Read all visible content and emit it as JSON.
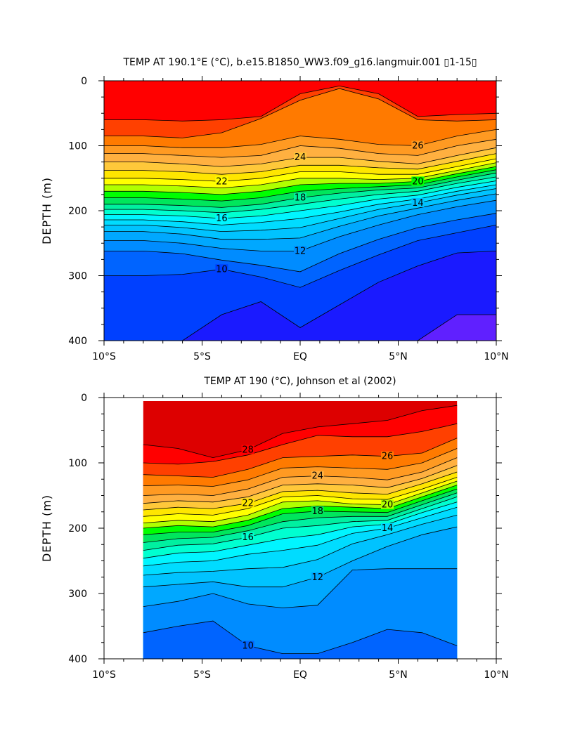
{
  "chart_data": [
    {
      "type": "contour",
      "title": "TEMP AT 190.1°E (°C), b.e15.B1850_WW3.f09_g16.langmuir.001 ▯1-15▯",
      "xlabel": "",
      "ylabel": "DEPTH (m)",
      "x_ticks": [
        "10°S",
        "5°S",
        "EQ",
        "5°N",
        "10°N"
      ],
      "x_range": [
        -10,
        10
      ],
      "y_ticks": [
        "0",
        "100",
        "200",
        "300",
        "400"
      ],
      "y_range": [
        0,
        400
      ],
      "y_inverted": true,
      "data_x_range": [
        -10,
        10
      ],
      "levels": [
        {
          "temp": 28,
          "depth": [
            60,
            60,
            62,
            60,
            55,
            20,
            8,
            20,
            55,
            52,
            50
          ]
        },
        {
          "temp": 27,
          "depth": [
            85,
            85,
            88,
            80,
            58,
            30,
            12,
            28,
            60,
            62,
            60
          ]
        },
        {
          "temp": 26,
          "depth": [
            100,
            100,
            103,
            103,
            98,
            85,
            90,
            98,
            100,
            85,
            75
          ]
        },
        {
          "temp": 25,
          "depth": [
            112,
            112,
            115,
            118,
            115,
            100,
            104,
            112,
            115,
            100,
            90
          ]
        },
        {
          "temp": 24,
          "depth": [
            125,
            125,
            128,
            132,
            128,
            118,
            118,
            124,
            128,
            115,
            103
          ]
        },
        {
          "temp": 23,
          "depth": [
            138,
            138,
            140,
            144,
            140,
            130,
            130,
            134,
            136,
            124,
            112
          ]
        },
        {
          "temp": 22,
          "depth": [
            150,
            150,
            152,
            155,
            150,
            140,
            140,
            144,
            144,
            132,
            120
          ]
        },
        {
          "temp": 21,
          "depth": [
            160,
            160,
            162,
            165,
            160,
            150,
            150,
            152,
            150,
            138,
            126
          ]
        },
        {
          "temp": 20,
          "depth": [
            170,
            170,
            172,
            175,
            170,
            160,
            158,
            158,
            155,
            143,
            132
          ]
        },
        {
          "temp": 19,
          "depth": [
            180,
            180,
            182,
            185,
            180,
            170,
            166,
            163,
            160,
            148,
            137
          ]
        },
        {
          "temp": 18,
          "depth": [
            190,
            190,
            192,
            195,
            190,
            180,
            173,
            168,
            165,
            153,
            142
          ]
        },
        {
          "temp": 17,
          "depth": [
            198,
            198,
            200,
            203,
            198,
            190,
            182,
            175,
            170,
            158,
            148
          ]
        },
        {
          "temp": 16,
          "depth": [
            206,
            206,
            208,
            212,
            208,
            200,
            192,
            182,
            176,
            164,
            154
          ]
        },
        {
          "temp": 15,
          "depth": [
            214,
            214,
            217,
            222,
            218,
            212,
            202,
            190,
            182,
            170,
            160
          ]
        },
        {
          "temp": 14,
          "depth": [
            222,
            222,
            226,
            232,
            230,
            226,
            212,
            198,
            188,
            176,
            166
          ]
        },
        {
          "temp": 13,
          "depth": [
            232,
            232,
            236,
            244,
            244,
            242,
            224,
            208,
            196,
            184,
            174
          ]
        },
        {
          "temp": 12,
          "depth": [
            246,
            246,
            250,
            258,
            262,
            262,
            240,
            222,
            206,
            194,
            184
          ]
        },
        {
          "temp": 11,
          "depth": [
            262,
            262,
            266,
            276,
            284,
            294,
            266,
            244,
            226,
            214,
            204
          ]
        },
        {
          "temp": 10,
          "depth": [
            300,
            300,
            298,
            290,
            302,
            318,
            292,
            268,
            246,
            234,
            222
          ]
        },
        {
          "temp": 9,
          "depth": [
            400,
            400,
            400,
            360,
            340,
            380,
            345,
            310,
            285,
            265,
            262
          ]
        },
        {
          "temp": 8,
          "depth": [
            400,
            400,
            400,
            400,
            400,
            400,
            400,
            400,
            400,
            360,
            360
          ]
        }
      ],
      "colors": {
        "29": "#ff0000",
        "28": "#ff4000",
        "27": "#ff7a00",
        "26": "#ff9a22",
        "25": "#ffb040",
        "24": "#ffc83a",
        "23": "#ffe600",
        "22": "#ffff00",
        "21": "#b0ff00",
        "20": "#00ff00",
        "19": "#00e65c",
        "18": "#00f0a0",
        "17": "#00ffd0",
        "16": "#00f5ff",
        "15": "#00dcff",
        "14": "#00c3ff",
        "13": "#00a8ff",
        "12": "#008cff",
        "11": "#0064ff",
        "10": "#0040ff",
        "9": "#1a1aff",
        "8": "#6020ff"
      },
      "contour_labels": [
        "26",
        "24",
        "22",
        "20",
        "18",
        "16",
        "14",
        "12",
        "10"
      ]
    },
    {
      "type": "contour",
      "title": "TEMP AT 190 (°C), Johnson et al (2002)",
      "xlabel": "",
      "ylabel": "DEPTH (m)",
      "x_ticks": [
        "10°S",
        "5°S",
        "EQ",
        "5°N",
        "10°N"
      ],
      "x_range": [
        -10,
        10
      ],
      "y_ticks": [
        "0",
        "100",
        "200",
        "300",
        "400"
      ],
      "y_range": [
        0,
        400
      ],
      "y_inverted": true,
      "data_x_range": [
        -8,
        8
      ],
      "levels": [
        {
          "temp": 28,
          "depth": [
            72,
            78,
            92,
            80,
            55,
            45,
            40,
            35,
            20,
            12
          ]
        },
        {
          "temp": 27,
          "depth": [
            100,
            102,
            98,
            88,
            72,
            58,
            60,
            60,
            52,
            40
          ]
        },
        {
          "temp": 26,
          "depth": [
            118,
            120,
            122,
            110,
            92,
            90,
            88,
            90,
            85,
            62
          ]
        },
        {
          "temp": 25,
          "depth": [
            135,
            134,
            136,
            126,
            108,
            106,
            108,
            110,
            100,
            78
          ]
        },
        {
          "temp": 24,
          "depth": [
            150,
            148,
            150,
            140,
            122,
            120,
            122,
            126,
            114,
            92
          ]
        },
        {
          "temp": 23,
          "depth": [
            162,
            158,
            160,
            152,
            134,
            132,
            134,
            138,
            124,
            104
          ]
        },
        {
          "temp": 22,
          "depth": [
            172,
            168,
            170,
            162,
            144,
            142,
            146,
            148,
            132,
            114
          ]
        },
        {
          "temp": 21,
          "depth": [
            182,
            178,
            180,
            170,
            152,
            150,
            155,
            156,
            140,
            122
          ]
        },
        {
          "temp": 20,
          "depth": [
            192,
            188,
            190,
            180,
            160,
            158,
            163,
            164,
            146,
            128
          ]
        },
        {
          "temp": 19,
          "depth": [
            200,
            196,
            198,
            188,
            170,
            166,
            168,
            170,
            152,
            134
          ]
        },
        {
          "temp": 18,
          "depth": [
            210,
            206,
            206,
            196,
            178,
            174,
            175,
            176,
            158,
            140
          ]
        },
        {
          "temp": 17,
          "depth": [
            222,
            216,
            214,
            204,
            190,
            184,
            182,
            182,
            164,
            146
          ]
        },
        {
          "temp": 16,
          "depth": [
            234,
            226,
            224,
            214,
            200,
            196,
            190,
            188,
            170,
            152
          ]
        },
        {
          "temp": 15,
          "depth": [
            246,
            238,
            236,
            226,
            216,
            210,
            198,
            194,
            176,
            160
          ]
        },
        {
          "temp": 14,
          "depth": [
            258,
            252,
            250,
            240,
            234,
            226,
            208,
            200,
            184,
            168
          ]
        },
        {
          "temp": 13,
          "depth": [
            272,
            268,
            266,
            262,
            260,
            248,
            224,
            210,
            194,
            180
          ]
        },
        {
          "temp": 12,
          "depth": [
            290,
            286,
            282,
            290,
            290,
            275,
            250,
            228,
            210,
            198
          ]
        },
        {
          "temp": 11,
          "depth": [
            320,
            312,
            300,
            316,
            322,
            318,
            264,
            262,
            262,
            262
          ]
        },
        {
          "temp": 10,
          "depth": [
            360,
            350,
            342,
            380,
            392,
            392,
            375,
            355,
            360,
            380
          ]
        },
        {
          "temp": 9,
          "depth": [
            400,
            400,
            400,
            400,
            400,
            400,
            400,
            400,
            400,
            400
          ]
        }
      ],
      "colors": {
        "29": "#dd0000",
        "28": "#ff0000",
        "27": "#ff4000",
        "26": "#ff7a00",
        "25": "#ff9a22",
        "24": "#ffb040",
        "23": "#ffc83a",
        "22": "#ffe600",
        "21": "#ffff00",
        "20": "#b0ff00",
        "19": "#00ff00",
        "18": "#00e65c",
        "17": "#00f0a0",
        "16": "#00ffd0",
        "15": "#00f5ff",
        "14": "#00dcff",
        "13": "#00c3ff",
        "12": "#00a8ff",
        "11": "#008cff",
        "10": "#0064ff",
        "9": "#0040ff"
      },
      "contour_labels": [
        "28",
        "26",
        "24",
        "22",
        "20",
        "18",
        "16",
        "14",
        "12",
        "10"
      ]
    }
  ]
}
